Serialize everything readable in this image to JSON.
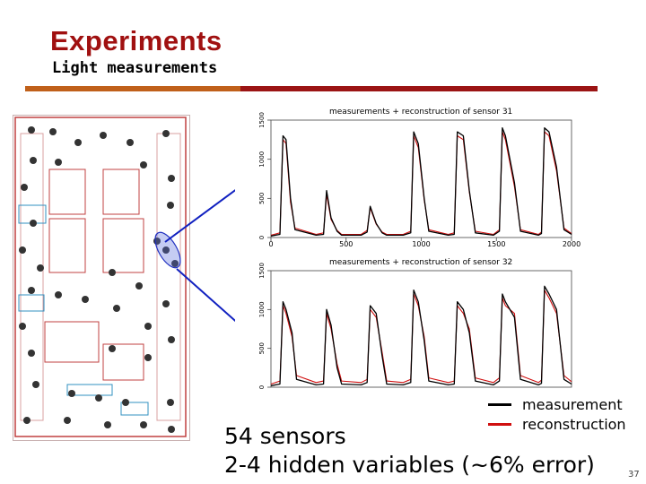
{
  "slide": {
    "title": "Experiments",
    "subtitle": "Light measurements",
    "caption_line1": "54 sensors",
    "caption_line2": "2-4 hidden variables (~6% error)",
    "page_number": "37"
  },
  "colors": {
    "title": "#a01010",
    "bar_orange": "#c0601a",
    "bar_red": "#9b1414",
    "measurement": "#000000",
    "reconstruction": "#d01010",
    "arrow": "#1020c0"
  },
  "legend": {
    "measurement": "measurement",
    "reconstruction": "reconstruction"
  },
  "chart_data": [
    {
      "type": "line",
      "title": "measurements + reconstruction of sensor 31",
      "xlim": [
        0,
        2000
      ],
      "ylim": [
        0,
        1500
      ],
      "x_ticks": [
        "0",
        "500",
        "1000",
        "1500",
        "2000"
      ],
      "y_ticks": [
        "0",
        "500",
        "1000",
        "1500"
      ],
      "series": [
        {
          "name": "measurement",
          "x": [
            0,
            60,
            80,
            100,
            130,
            160,
            300,
            350,
            370,
            400,
            440,
            470,
            600,
            640,
            660,
            700,
            740,
            770,
            880,
            930,
            950,
            980,
            1020,
            1050,
            1180,
            1220,
            1240,
            1280,
            1320,
            1360,
            1480,
            1520,
            1540,
            1560,
            1620,
            1660,
            1780,
            1800,
            1820,
            1850,
            1900,
            1950,
            2000
          ],
          "y": [
            20,
            40,
            1300,
            1250,
            500,
            100,
            30,
            40,
            600,
            250,
            80,
            30,
            30,
            70,
            400,
            180,
            60,
            30,
            30,
            60,
            1350,
            1200,
            500,
            80,
            30,
            40,
            1350,
            1300,
            600,
            60,
            30,
            80,
            1400,
            1300,
            700,
            80,
            30,
            50,
            1400,
            1350,
            900,
            100,
            40
          ]
        },
        {
          "name": "reconstruction",
          "x": [
            0,
            60,
            80,
            100,
            130,
            160,
            300,
            350,
            370,
            400,
            440,
            470,
            600,
            640,
            660,
            700,
            740,
            770,
            880,
            930,
            950,
            980,
            1020,
            1050,
            1180,
            1220,
            1240,
            1280,
            1320,
            1360,
            1480,
            1520,
            1540,
            1560,
            1620,
            1660,
            1780,
            1800,
            1820,
            1850,
            1900,
            1950,
            2000
          ],
          "y": [
            30,
            60,
            1250,
            1200,
            450,
            120,
            40,
            60,
            550,
            230,
            90,
            40,
            40,
            90,
            380,
            170,
            70,
            40,
            40,
            80,
            1300,
            1150,
            480,
            100,
            40,
            60,
            1300,
            1250,
            580,
            80,
            40,
            100,
            1350,
            1250,
            650,
            100,
            40,
            70,
            1350,
            1300,
            850,
            120,
            50
          ]
        }
      ]
    },
    {
      "type": "line",
      "title": "measurements + reconstruction of sensor 32",
      "xlim": [
        0,
        2000
      ],
      "ylim": [
        0,
        1500
      ],
      "x_ticks": [],
      "y_ticks": [
        "0",
        "500",
        "1000",
        "1500"
      ],
      "series": [
        {
          "name": "measurement",
          "x": [
            0,
            60,
            80,
            100,
            140,
            170,
            300,
            350,
            370,
            400,
            440,
            470,
            600,
            640,
            660,
            700,
            740,
            770,
            880,
            930,
            950,
            980,
            1020,
            1050,
            1180,
            1220,
            1240,
            1280,
            1320,
            1360,
            1480,
            1520,
            1540,
            1560,
            1620,
            1660,
            1780,
            1800,
            1820,
            1850,
            1900,
            1950,
            2000
          ],
          "y": [
            20,
            40,
            1100,
            1000,
            700,
            100,
            30,
            40,
            1000,
            800,
            250,
            40,
            30,
            60,
            1050,
            950,
            400,
            40,
            30,
            60,
            1250,
            1100,
            600,
            80,
            30,
            40,
            1100,
            1000,
            700,
            80,
            30,
            80,
            1200,
            1100,
            900,
            100,
            30,
            50,
            1300,
            1200,
            1000,
            100,
            40
          ]
        },
        {
          "name": "reconstruction",
          "x": [
            0,
            60,
            80,
            100,
            140,
            170,
            300,
            350,
            370,
            400,
            440,
            470,
            600,
            640,
            660,
            700,
            740,
            770,
            880,
            930,
            950,
            980,
            1020,
            1050,
            1180,
            1220,
            1240,
            1280,
            1320,
            1360,
            1480,
            1520,
            1540,
            1560,
            1620,
            1660,
            1780,
            1800,
            1820,
            1850,
            1900,
            1950,
            2000
          ],
          "y": [
            40,
            80,
            1050,
            950,
            650,
            150,
            60,
            80,
            950,
            750,
            300,
            80,
            60,
            100,
            1000,
            900,
            450,
            80,
            60,
            100,
            1200,
            1050,
            650,
            120,
            60,
            80,
            1050,
            950,
            750,
            120,
            60,
            120,
            1150,
            1050,
            950,
            150,
            60,
            90,
            1250,
            1150,
            950,
            150,
            70
          ]
        }
      ]
    }
  ]
}
